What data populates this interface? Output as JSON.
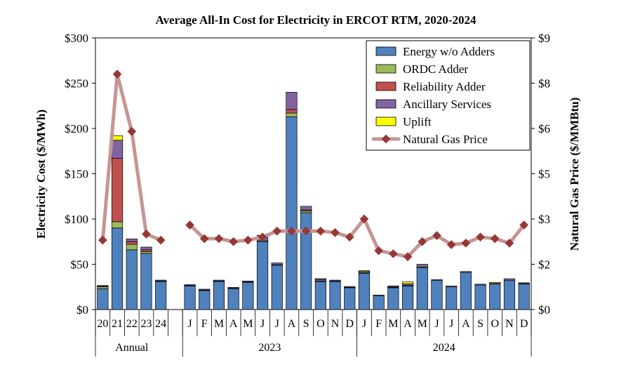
{
  "chart_data": {
    "type": "bar",
    "title": "Average All-In Cost for Electricity in ERCOT RTM, 2020-2024",
    "ylabel": "Electricity Cost ($/MWh)",
    "y2label": "Natural Gas Price ($/MMBtu)",
    "ylim": [
      0,
      300
    ],
    "y2lim": [
      0,
      9
    ],
    "yticks": [
      "$0",
      "$50",
      "$100",
      "$150",
      "$200",
      "$250",
      "$300"
    ],
    "y2ticks": [
      "$0",
      "$2",
      "$3",
      "$5",
      "$6",
      "$8",
      "$9"
    ],
    "stacked": true,
    "grid": false,
    "legend_position": "top-right",
    "categories": [
      "20",
      "21",
      "22",
      "23",
      "24",
      "J",
      "F",
      "M",
      "A",
      "M",
      "J",
      "J",
      "A",
      "S",
      "O",
      "N",
      "D",
      "J",
      "F",
      "M",
      "A",
      "M",
      "J",
      "J",
      "A",
      "S",
      "O",
      "N",
      "D"
    ],
    "category_slots": [
      0,
      1,
      2,
      3,
      4,
      6,
      7,
      8,
      9,
      10,
      11,
      12,
      13,
      14,
      15,
      16,
      17,
      18,
      19,
      20,
      21,
      22,
      23,
      24,
      25,
      26,
      27,
      28,
      29
    ],
    "groups": [
      {
        "label": "Annual",
        "start": 0,
        "end": 4
      },
      {
        "label": "2023",
        "start": 5,
        "end": 16
      },
      {
        "label": "2024",
        "start": 17,
        "end": 28
      }
    ],
    "series": [
      {
        "name": "Energy w/o Adders",
        "color": "#4f81bd",
        "values": [
          23,
          90,
          66,
          62,
          31,
          26,
          21,
          31,
          23,
          30,
          75,
          49,
          213,
          107,
          31,
          31,
          24,
          40,
          15,
          24,
          26,
          46,
          32,
          25,
          41,
          27,
          28,
          32,
          28
        ]
      },
      {
        "name": "ORDC Adder",
        "color": "#9bbb59",
        "values": [
          2,
          7,
          6,
          2,
          0.5,
          0.5,
          0.5,
          0.5,
          0.5,
          0.5,
          1,
          0.5,
          4,
          2,
          0.5,
          0.5,
          0.5,
          1,
          0,
          0.5,
          0.5,
          1,
          0,
          0,
          0,
          0,
          0,
          0,
          0
        ]
      },
      {
        "name": "Reliability Adder",
        "color": "#c0504d",
        "values": [
          0,
          70,
          3,
          2,
          0,
          0,
          0,
          0,
          0,
          0,
          0,
          0,
          4,
          1,
          0,
          0,
          0,
          0,
          0,
          0,
          0,
          0,
          0,
          0,
          0,
          0,
          0,
          0,
          0
        ]
      },
      {
        "name": "Ancillary Services",
        "color": "#8064a2",
        "values": [
          1,
          20,
          3,
          3,
          1,
          1,
          1,
          1,
          1,
          1,
          6,
          2,
          19,
          4,
          2,
          1,
          1,
          1,
          1,
          1,
          2,
          3,
          1,
          1,
          1,
          1,
          1,
          2,
          1
        ]
      },
      {
        "name": "Uplift",
        "color": "#ffff00",
        "values": [
          0.5,
          5,
          0,
          0,
          0,
          0,
          0,
          0,
          0,
          0,
          0,
          0,
          0,
          0,
          0.5,
          0,
          0,
          1,
          0,
          0.5,
          2,
          0,
          0,
          0,
          0,
          0,
          1,
          0,
          0.5
        ]
      }
    ],
    "line_series": {
      "name": "Natural Gas Price",
      "axis": "secondary",
      "color": "#c69594",
      "marker_color": "#953735",
      "values": [
        2.3,
        7.8,
        5.9,
        2.5,
        2.3,
        null,
        2.8,
        2.35,
        2.35,
        2.25,
        2.3,
        2.4,
        2.6,
        2.6,
        2.6,
        2.6,
        2.55,
        2.4,
        3.0,
        1.95,
        1.85,
        1.75,
        2.25,
        2.45,
        2.15,
        2.2,
        2.4,
        2.35,
        2.2,
        2.8
      ]
    }
  }
}
